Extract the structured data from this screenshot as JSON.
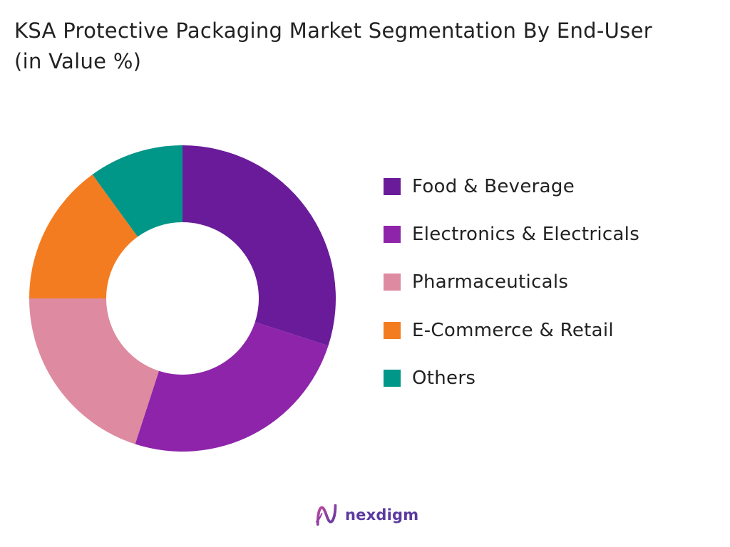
{
  "chart_data": {
    "type": "pie",
    "title": "KSA Protective Packaging Market Segmentation By End-User (in Value %)",
    "donut": true,
    "legend_position": "right",
    "categories": [
      "Food & Beverage",
      "Electronics & Electricals",
      "Pharmaceuticals",
      "E-Commerce & Retail",
      "Others"
    ],
    "values": [
      30,
      25,
      20,
      15,
      10
    ],
    "colors": [
      "#6a1b9a",
      "#8e24aa",
      "#de8aa0",
      "#f47c20",
      "#009688"
    ]
  },
  "brand": {
    "name": "nexdigm",
    "icon": "nexdigm-logo-icon"
  }
}
